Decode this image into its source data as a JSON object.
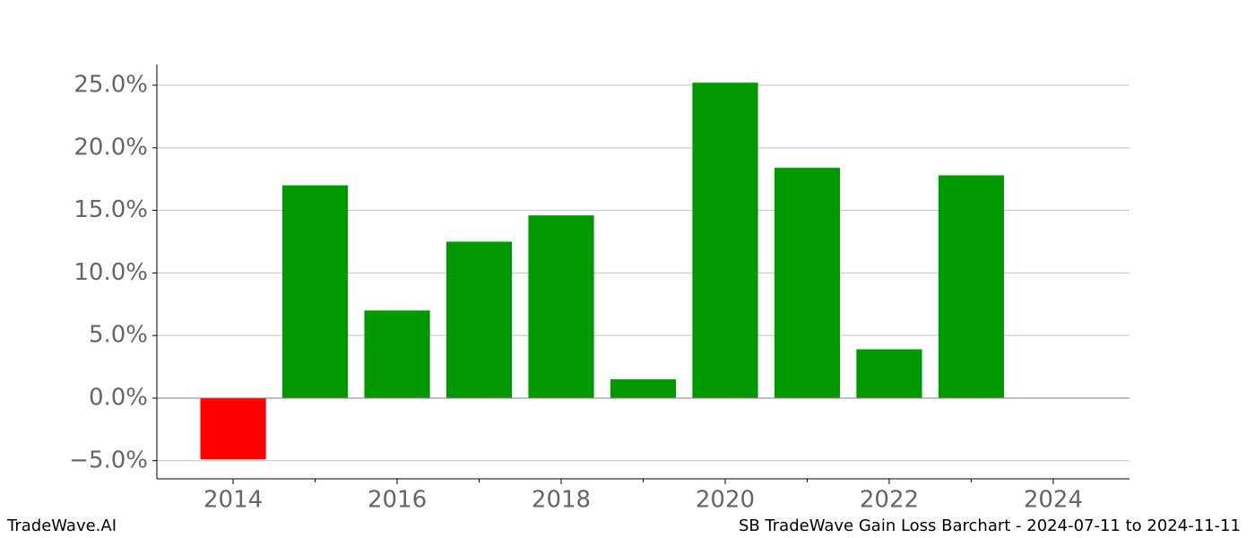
{
  "chart_data": {
    "type": "bar",
    "x": [
      2014,
      2015,
      2016,
      2017,
      2018,
      2019,
      2020,
      2021,
      2022,
      2023
    ],
    "values": [
      -4.9,
      17.0,
      7.0,
      12.5,
      14.6,
      1.5,
      25.2,
      18.4,
      3.9,
      17.8
    ],
    "colors": [
      "#ff0000",
      "#009900",
      "#009900",
      "#009900",
      "#009900",
      "#009900",
      "#009900",
      "#009900",
      "#009900",
      "#009900"
    ],
    "xlim": [
      2013.07,
      2024.93
    ],
    "xticks": [
      2014,
      2016,
      2018,
      2020,
      2022,
      2024
    ],
    "xminorticks": [
      2015,
      2017,
      2019,
      2021,
      2023
    ],
    "ylim": [
      -6.45,
      26.65
    ],
    "yticks": [
      {
        "value": -5,
        "label": "−5.0%"
      },
      {
        "value": 0,
        "label": "0.0%"
      },
      {
        "value": 5,
        "label": "5.0%"
      },
      {
        "value": 10,
        "label": "10.0%"
      },
      {
        "value": 15,
        "label": "15.0%"
      },
      {
        "value": 20,
        "label": "20.0%"
      },
      {
        "value": 25,
        "label": "25.0%"
      }
    ],
    "grid": true
  },
  "footer": {
    "left": "TradeWave.AI",
    "right": "SB TradeWave Gain Loss Barchart - 2024-07-11 to 2024-11-11"
  }
}
